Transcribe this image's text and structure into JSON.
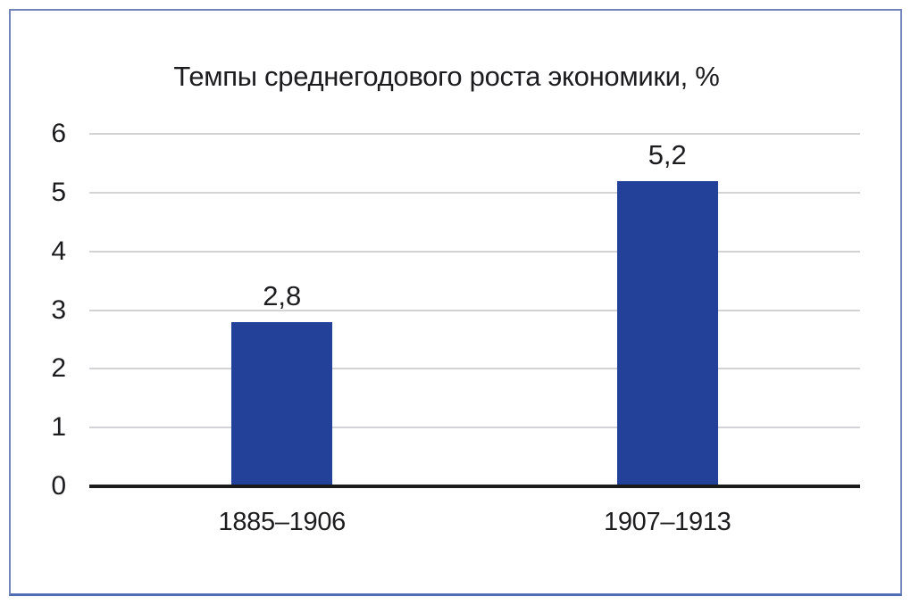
{
  "frame": {
    "border_color": "#7386bb",
    "border_bottom_color": "#4f6db3"
  },
  "chart_data": {
    "type": "bar",
    "title": "Темпы среднегодового роста экономики, %",
    "categories": [
      "1885–1906",
      "1907–1913"
    ],
    "values": [
      2.8,
      5.2
    ],
    "value_labels": [
      "2,8",
      "5,2"
    ],
    "yticks": [
      0,
      1,
      2,
      3,
      4,
      5,
      6
    ],
    "ytick_labels": [
      "0",
      "1",
      "2",
      "3",
      "4",
      "5",
      "6"
    ],
    "ylim": [
      0,
      6
    ],
    "xlabel": "",
    "ylabel": "",
    "grid": true,
    "legend": false,
    "bar_color": "#24419a",
    "gridline_color": "#d3d3d7",
    "axis_color": "#1b1b1b",
    "text_color": "#1c1c1e",
    "background_color": "#ffffff"
  }
}
